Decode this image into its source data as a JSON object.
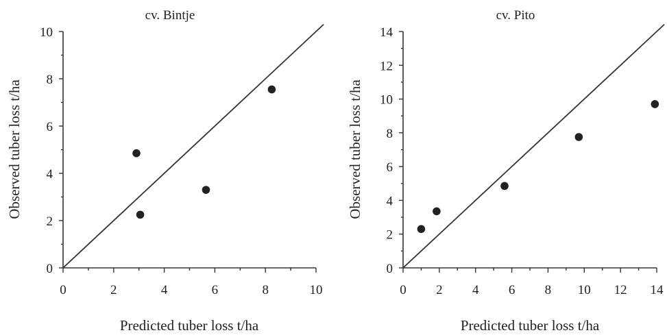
{
  "chart_data": [
    {
      "type": "scatter",
      "title": "cv. Bintje",
      "xlabel": "Predicted tuber loss t/ha",
      "ylabel": "Observed tuber loss t/ha",
      "xlim": [
        0,
        10
      ],
      "ylim": [
        0,
        10
      ],
      "x_ticks": [
        "0",
        "2",
        "4",
        "6",
        "8",
        "10"
      ],
      "y_ticks": [
        "0",
        "2",
        "4",
        "6",
        "8",
        "10"
      ],
      "reference_line": "1:1",
      "grid": false,
      "series": [
        {
          "points": [
            {
              "x": 2.9,
              "y": 4.85
            },
            {
              "x": 3.05,
              "y": 2.25
            },
            {
              "x": 5.65,
              "y": 3.3
            },
            {
              "x": 8.25,
              "y": 7.55
            }
          ]
        }
      ]
    },
    {
      "type": "scatter",
      "title": "cv. Pito",
      "xlabel": "Predicted tuber loss t/ha",
      "ylabel": "Observed tuber loss t/ha",
      "xlim": [
        0,
        14
      ],
      "ylim": [
        0,
        14
      ],
      "x_ticks": [
        "0",
        "2",
        "4",
        "6",
        "8",
        "10",
        "12",
        "14"
      ],
      "y_ticks": [
        "0",
        "2",
        "4",
        "6",
        "8",
        "10",
        "12",
        "14"
      ],
      "reference_line": "1:1",
      "grid": false,
      "series": [
        {
          "points": [
            {
              "x": 1.0,
              "y": 2.3
            },
            {
              "x": 1.85,
              "y": 3.35
            },
            {
              "x": 5.6,
              "y": 4.85
            },
            {
              "x": 9.7,
              "y": 7.75
            },
            {
              "x": 13.9,
              "y": 9.7
            }
          ]
        }
      ]
    }
  ]
}
